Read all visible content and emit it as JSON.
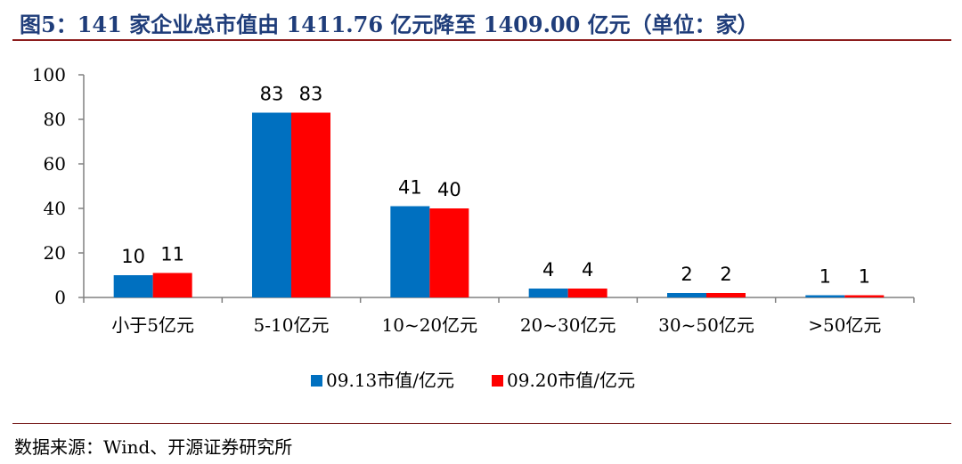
{
  "figure": {
    "title": "图5：141 家企业总市值由 1411.76 亿元降至 1409.00 亿元（单位：家）",
    "source": "数据来源：Wind、开源证券研究所"
  },
  "chart_data": {
    "type": "bar",
    "title": "",
    "xlabel": "",
    "ylabel": "",
    "categories": [
      "小于5亿元",
      "5-10亿元",
      "10~20亿元",
      "20~30亿元",
      "30~50亿元",
      ">50亿元"
    ],
    "series": [
      {
        "name": "09.13市值/亿元",
        "values": [
          10,
          83,
          41,
          4,
          2,
          1
        ],
        "color": "#0070c0"
      },
      {
        "name": "09.20市值/亿元",
        "values": [
          11,
          83,
          40,
          4,
          2,
          1
        ],
        "color": "#ff0000"
      }
    ],
    "ylim": [
      0,
      100
    ],
    "yticks": [
      0,
      20,
      40,
      60,
      80,
      100
    ],
    "grid": false,
    "data_labels": true,
    "legend_position": "bottom"
  }
}
